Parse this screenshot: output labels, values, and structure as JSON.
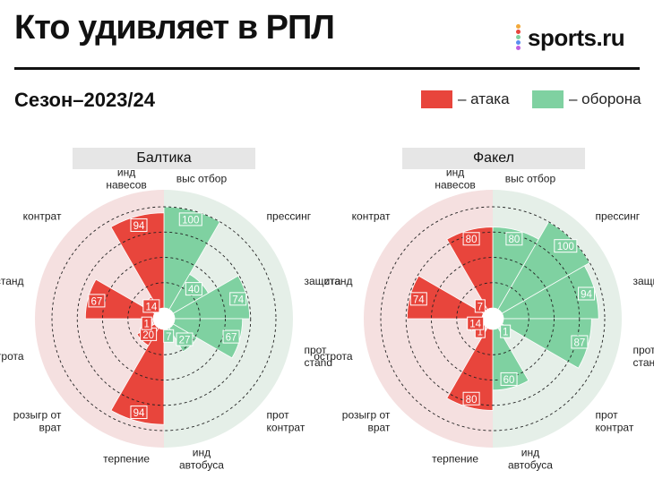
{
  "header": {
    "title": "Кто удивляет в РПЛ",
    "brand": "sports.ru",
    "subtitle": "Сезон–2023/24"
  },
  "legend": [
    {
      "label": "– атака",
      "color": "#e8453c"
    },
    {
      "label": "– оборона",
      "color": "#7fd1a1"
    }
  ],
  "colors": {
    "attack": "#e8453c",
    "defense": "#7fd1a1",
    "attack_bg": "#f5e0e0",
    "defense_bg": "#e5efe8",
    "logo_dots": [
      "#f2a93b",
      "#e8453c",
      "#7fd1a1",
      "#5b8ef0",
      "#c05ee0"
    ]
  },
  "chart_data": [
    {
      "type": "polar-bar",
      "title": "Балтика",
      "rlim": [
        0,
        100
      ],
      "grid": true,
      "categories": [
        "выс отбор",
        "прессинг",
        "защита",
        "прот стand",
        "прот контрат",
        "инд автобуса",
        "терпение",
        "розыгр от врат",
        "острота",
        "станд",
        "контрат",
        "инд навесов"
      ],
      "series": [
        {
          "name": "оборона",
          "values": [
            100,
            40,
            74,
            67,
            27,
            7,
            null,
            null,
            null,
            null,
            null,
            null
          ]
        },
        {
          "name": "атака",
          "values": [
            null,
            null,
            null,
            null,
            null,
            null,
            94,
            20,
            1,
            67,
            14,
            94
          ]
        }
      ]
    },
    {
      "type": "polar-bar",
      "title": "Факел",
      "rlim": [
        0,
        100
      ],
      "grid": true,
      "categories": [
        "выс отбор",
        "прессинг",
        "защита",
        "прот станд",
        "прот контрат",
        "инд автобуса",
        "терпение",
        "розыгр от врат",
        "острота",
        "станд",
        "контрат",
        "инд навесов"
      ],
      "series": [
        {
          "name": "оборона",
          "values": [
            80,
            100,
            94,
            87,
            1,
            60,
            null,
            null,
            null,
            null,
            null,
            null
          ]
        },
        {
          "name": "атака",
          "values": [
            null,
            null,
            null,
            null,
            null,
            null,
            80,
            1,
            14,
            74,
            7,
            80
          ]
        }
      ]
    }
  ]
}
